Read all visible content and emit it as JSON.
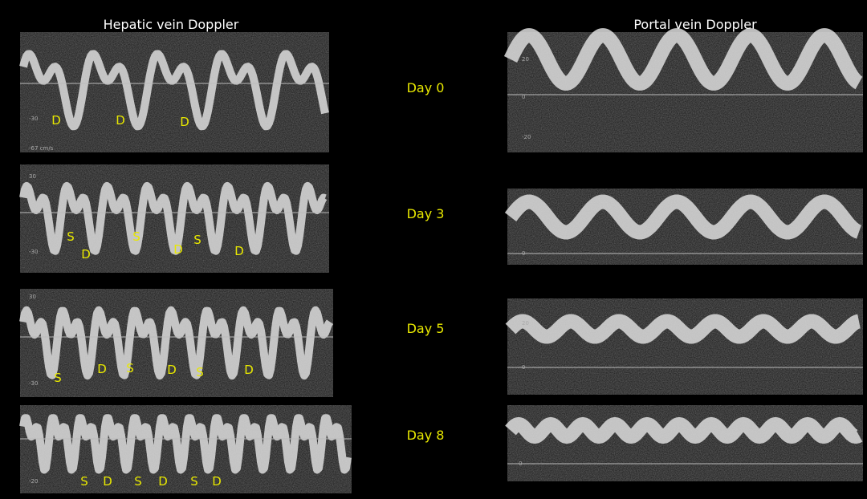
{
  "headers": {
    "hepatic": "Hepatic vein Doppler",
    "portal": "Portal vein Doppler"
  },
  "rows": [
    {
      "day": "Day 0",
      "hepatic_labels": [
        "D",
        "D",
        "D"
      ],
      "hepatic_ticks": [
        "-30",
        "-67 cm/s"
      ],
      "portal_ticks": [
        "20",
        "0",
        "-20"
      ]
    },
    {
      "day": "Day 3",
      "hepatic_labels": [
        "S",
        "D",
        "S",
        "D",
        "S",
        "D"
      ],
      "hepatic_ticks": [
        "30",
        "-30"
      ],
      "portal_ticks": [
        "0"
      ]
    },
    {
      "day": "Day 5",
      "hepatic_labels": [
        "S",
        "D",
        "S",
        "D",
        "S",
        "D"
      ],
      "hepatic_ticks": [
        "30",
        "-30"
      ],
      "portal_ticks": [
        "20",
        "0"
      ]
    },
    {
      "day": "Day 8",
      "hepatic_labels": [
        "S",
        "D",
        "S",
        "D",
        "S",
        "D"
      ],
      "hepatic_ticks": [
        "-20"
      ],
      "portal_ticks": [
        "0"
      ]
    }
  ]
}
